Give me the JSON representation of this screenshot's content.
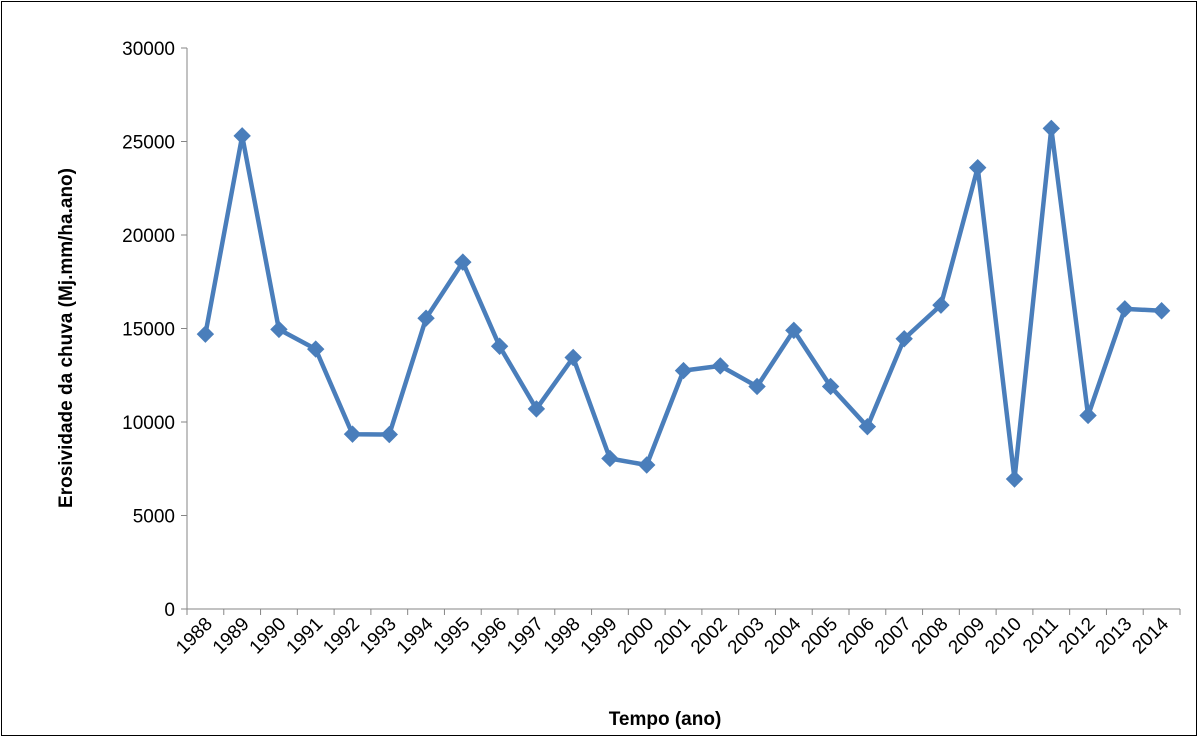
{
  "chart_data": {
    "type": "line",
    "title": "",
    "xlabel": "Tempo (ano)",
    "ylabel": "Erosividade da chuva (Mj.mm/ha.ano)",
    "categories": [
      "1988",
      "1989",
      "1990",
      "1991",
      "1992",
      "1993",
      "1994",
      "1995",
      "1996",
      "1997",
      "1998",
      "1999",
      "2000",
      "2001",
      "2002",
      "2003",
      "2004",
      "2005",
      "2006",
      "2007",
      "2008",
      "2009",
      "2010",
      "2011",
      "2012",
      "2013",
      "2014"
    ],
    "series": [
      {
        "values": [
          14700,
          25300,
          14950,
          13900,
          9350,
          9330,
          15550,
          18550,
          14050,
          10700,
          13450,
          8050,
          7700,
          12750,
          13000,
          11900,
          14900,
          11900,
          9750,
          14450,
          16250,
          23600,
          6950,
          25700,
          10350,
          16050,
          15950
        ]
      }
    ],
    "ylim": [
      0,
      30000
    ],
    "yticks": [
      0,
      5000,
      10000,
      15000,
      20000,
      25000,
      30000
    ],
    "grid": false,
    "legend": "none",
    "line_color": "#4a7ebb"
  }
}
